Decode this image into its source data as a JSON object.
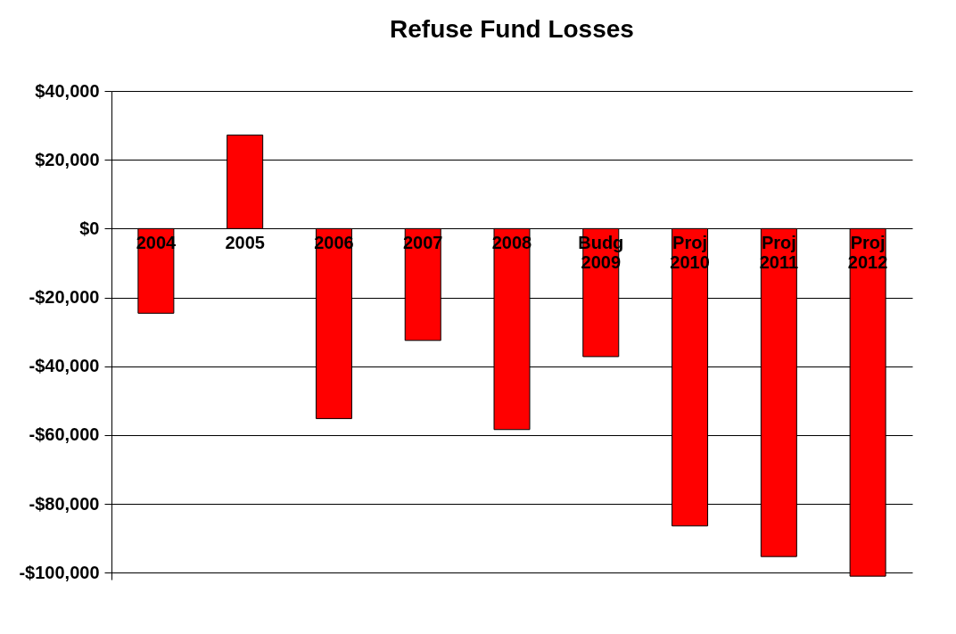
{
  "chart_data": {
    "type": "bar",
    "title": "Refuse Fund Losses",
    "categories": [
      "2004",
      "2005",
      "2006",
      "2007",
      "2008",
      "Budg 2009",
      "Proj 2010",
      "Proj 2011",
      "Proj 2012"
    ],
    "values": [
      -24600,
      27200,
      -55200,
      -32500,
      -58400,
      -37200,
      -86400,
      -95300,
      -101000
    ],
    "color": "#ff0000",
    "ylim": [
      -102000,
      40000
    ],
    "yticks": [
      {
        "value": -100000,
        "label": "-$100,000"
      },
      {
        "value": -80000,
        "label": "-$80,000"
      },
      {
        "value": -60000,
        "label": "-$60,000"
      },
      {
        "value": -40000,
        "label": "-$40,000"
      },
      {
        "value": -20000,
        "label": "-$20,000"
      },
      {
        "value": 0,
        "label": "$0"
      },
      {
        "value": 20000,
        "label": "$20,000"
      },
      {
        "value": 40000,
        "label": "$40,000"
      }
    ],
    "grid": "y"
  }
}
